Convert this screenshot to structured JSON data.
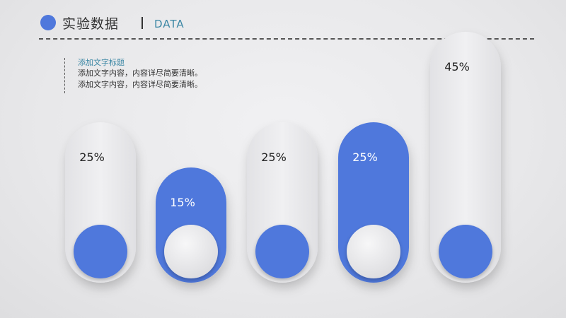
{
  "header": {
    "title": "实验数据",
    "subtitle": "DATA",
    "accent_color": "#4f78dc"
  },
  "text_block": {
    "heading": "添加文字标题",
    "lines": [
      "添加文字内容，内容详尽简要清晰。",
      "添加文字内容，内容详尽简要清晰。"
    ]
  },
  "chart_data": {
    "type": "bar",
    "style": "pill toggles; knob at bottom, label near top",
    "values": [
      25,
      15,
      25,
      25,
      45
    ],
    "labels": [
      "25%",
      "15%",
      "25%",
      "25%",
      "45%"
    ],
    "fill_variants": [
      "light",
      "blue",
      "light",
      "blue",
      "light"
    ],
    "colors": {
      "blue": "#4f78dc",
      "light_pill": "#e9e9ec",
      "knob_light": "#eeeeef",
      "label_dark": "#222222",
      "label_light": "#ffffff"
    }
  }
}
